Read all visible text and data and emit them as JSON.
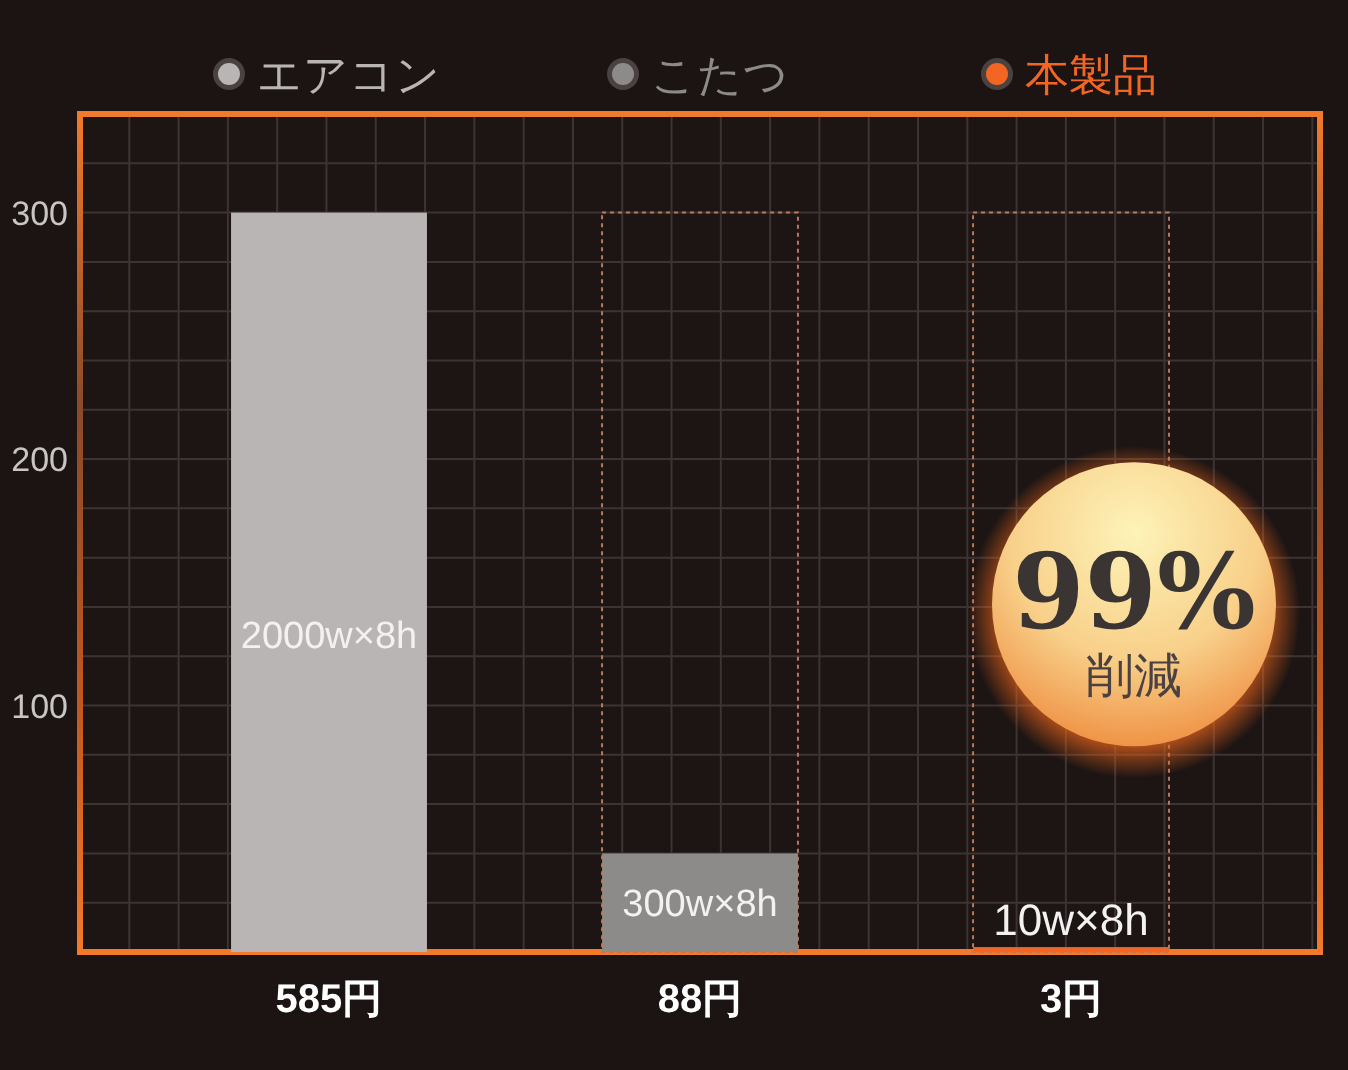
{
  "chart_data": {
    "type": "bar",
    "categories": [
      "585円",
      "88円",
      "3円"
    ],
    "series": [
      {
        "name": "エアコン",
        "color": "#b9b5b4",
        "values": [
          300,
          null,
          null
        ]
      },
      {
        "name": "こたつ",
        "color": "#8d8b8a",
        "values": [
          null,
          40,
          null
        ]
      },
      {
        "name": "本製品",
        "color": "#f26522",
        "values": [
          null,
          null,
          2
        ]
      },
      {
        "type": "bar",
        "color": "#b87a5c",
        "values": [
          null,
          300,
          300
        ],
        "line_style": "dotted"
      }
    ],
    "ylim": [
      0,
      340
    ],
    "yticks": [
      {
        "value": 0,
        "label": null
      },
      {
        "value": 20,
        "label": null
      },
      {
        "value": 40,
        "label": null
      },
      {
        "value": 60,
        "label": null
      },
      {
        "value": 80,
        "label": null
      },
      100,
      {
        "value": 120,
        "label": null
      },
      {
        "value": 140,
        "label": null
      },
      {
        "value": 160,
        "label": null
      },
      {
        "value": 180,
        "label": null
      },
      200,
      {
        "value": 220,
        "label": null
      },
      {
        "value": 240,
        "label": null
      },
      {
        "value": 260,
        "label": null
      },
      {
        "value": 280,
        "label": null
      },
      300,
      {
        "value": 320,
        "label": null
      },
      {
        "value": 340,
        "label": null
      }
    ],
    "grid": true,
    "legend": "top",
    "annotations": [
      "2000w×8h",
      {
        "text": "300w×8h",
        "x": "88円",
        "y": 40
      },
      {
        "text": "10w×8h",
        "x": "3円",
        "y": 2
      },
      "99%",
      "削減"
    ]
  }
}
